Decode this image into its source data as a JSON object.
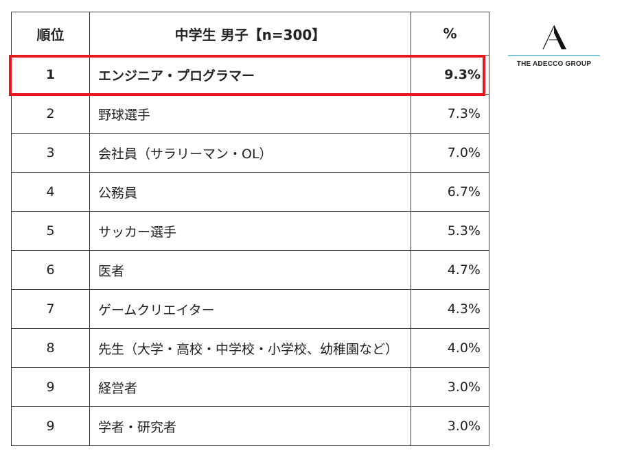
{
  "table": {
    "headers": {
      "rank": "順位",
      "title": "中学生 男子【n=300】",
      "percent": "%"
    },
    "rows": [
      {
        "rank": "1",
        "job": "エンジニア・プログラマー",
        "percent": "9.3%"
      },
      {
        "rank": "2",
        "job": "野球選手",
        "percent": "7.3%"
      },
      {
        "rank": "3",
        "job": "会社員（サラリーマン・OL）",
        "percent": "7.0%"
      },
      {
        "rank": "4",
        "job": "公務員",
        "percent": "6.7%"
      },
      {
        "rank": "5",
        "job": "サッカー選手",
        "percent": "5.3%"
      },
      {
        "rank": "6",
        "job": "医者",
        "percent": "4.7%"
      },
      {
        "rank": "7",
        "job": "ゲームクリエイター",
        "percent": "4.3%"
      },
      {
        "rank": "8",
        "job": "先生（大学・高校・中学校・小学校、幼稚園など）",
        "percent": "4.0%"
      },
      {
        "rank": "9",
        "job": "経営者",
        "percent": "3.0%"
      },
      {
        "rank": "9",
        "job": "学者・研究者",
        "percent": "3.0%"
      }
    ],
    "highlight_color": "#e8191c"
  },
  "logo": {
    "icon": "adecco-a-icon",
    "wordmark": "THE ADECCO GROUP",
    "rule_color": "#7ec3d6"
  }
}
